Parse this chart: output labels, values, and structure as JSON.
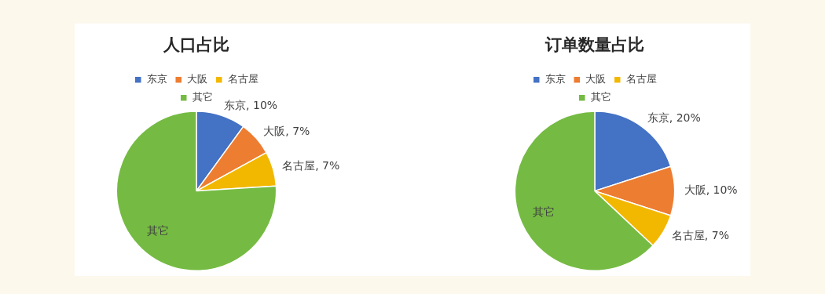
{
  "chart_data": [
    {
      "type": "pie",
      "title": "人口占比",
      "categories": [
        "东京",
        "大阪",
        "名古屋",
        "其它"
      ],
      "values": [
        10,
        7,
        7,
        76
      ],
      "colors": [
        "#4472c4",
        "#ed7d31",
        "#f2b800",
        "#75bb43"
      ],
      "value_labels": [
        "东京, 10%",
        "大阪, 7%",
        "名古屋, 7%",
        "其它"
      ],
      "legend": "top"
    },
    {
      "type": "pie",
      "title": "订单数量占比",
      "categories": [
        "东京",
        "大阪",
        "名古屋",
        "其它"
      ],
      "values": [
        20,
        10,
        7,
        63
      ],
      "colors": [
        "#4472c4",
        "#ed7d31",
        "#f2b800",
        "#75bb43"
      ],
      "value_labels": [
        "东京, 20%",
        "大阪, 10%",
        "名古屋, 7%",
        "其它"
      ],
      "legend": "top"
    }
  ]
}
